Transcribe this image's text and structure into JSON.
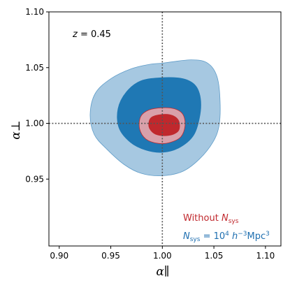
{
  "chart_data": {
    "type": "contour",
    "xlabel": "α∥",
    "ylabel": "α⊥",
    "xlim": [
      0.89,
      1.115
    ],
    "ylim": [
      0.89,
      1.1
    ],
    "xticks": [
      "0.90",
      "0.95",
      "1.00",
      "1.05",
      "1.10"
    ],
    "yticks": [
      "0.95",
      "1.00",
      "1.05",
      "1.10"
    ],
    "xtick_values": [
      0.9,
      0.95,
      1.0,
      1.05,
      1.1
    ],
    "ytick_values": [
      0.95,
      1.0,
      1.05,
      1.1
    ],
    "reference_lines": {
      "x": 1.0,
      "y": 1.0
    },
    "annotation": {
      "prefix": "z",
      "eq": " = ",
      "value": "0.45"
    },
    "grid": false,
    "legend": [
      {
        "label": "Without N_sys",
        "color": "#c0282d"
      },
      {
        "label": "N_sys = 10^4 h^-3 Mpc^3",
        "color": "#1f6fb0"
      }
    ],
    "series": [
      {
        "name": "N_sys = 10^4 h^-3 Mpc^3",
        "color_outer": "#a6c8e1",
        "color_inner": "#1f78b4",
        "contour_2sigma": [
          [
            1.0,
            1.054
          ],
          [
            1.028,
            1.057
          ],
          [
            1.044,
            1.054
          ],
          [
            1.053,
            1.042
          ],
          [
            1.056,
            1.02
          ],
          [
            1.055,
            0.998
          ],
          [
            1.049,
            0.983
          ],
          [
            1.036,
            0.968
          ],
          [
            1.02,
            0.957
          ],
          [
            1.0,
            0.953
          ],
          [
            0.98,
            0.955
          ],
          [
            0.963,
            0.963
          ],
          [
            0.946,
            0.977
          ],
          [
            0.934,
            0.99
          ],
          [
            0.93,
            1.008
          ],
          [
            0.935,
            1.027
          ],
          [
            0.95,
            1.04
          ],
          [
            0.97,
            1.049
          ],
          [
            0.988,
            1.053
          ]
        ],
        "contour_1sigma": [
          [
            1.0,
            1.041
          ],
          [
            1.02,
            1.04
          ],
          [
            1.032,
            1.034
          ],
          [
            1.037,
            1.022
          ],
          [
            1.036,
            1.005
          ],
          [
            1.03,
            0.989
          ],
          [
            1.016,
            0.978
          ],
          [
            1.0,
            0.974
          ],
          [
            0.984,
            0.976
          ],
          [
            0.969,
            0.983
          ],
          [
            0.958,
            0.996
          ],
          [
            0.957,
            1.013
          ],
          [
            0.965,
            1.028
          ],
          [
            0.979,
            1.038
          ]
        ]
      },
      {
        "name": "Without N_sys",
        "color_outer": "#d9a0aa",
        "color_inner": "#c0282d",
        "contour_2sigma": [
          [
            1.0,
            1.014
          ],
          [
            1.012,
            1.013
          ],
          [
            1.02,
            1.008
          ],
          [
            1.022,
            0.998
          ],
          [
            1.018,
            0.988
          ],
          [
            1.008,
            0.983
          ],
          [
            0.996,
            0.982
          ],
          [
            0.984,
            0.986
          ],
          [
            0.978,
            0.995
          ],
          [
            0.979,
            1.006
          ],
          [
            0.987,
            1.012
          ]
        ],
        "contour_1sigma": [
          [
            1.0,
            1.008
          ],
          [
            1.01,
            1.007
          ],
          [
            1.016,
            1.002
          ],
          [
            1.016,
            0.994
          ],
          [
            1.01,
            0.99
          ],
          [
            1.0,
            0.989
          ],
          [
            0.992,
            0.991
          ],
          [
            0.987,
            0.997
          ],
          [
            0.989,
            1.005
          ]
        ]
      }
    ]
  }
}
